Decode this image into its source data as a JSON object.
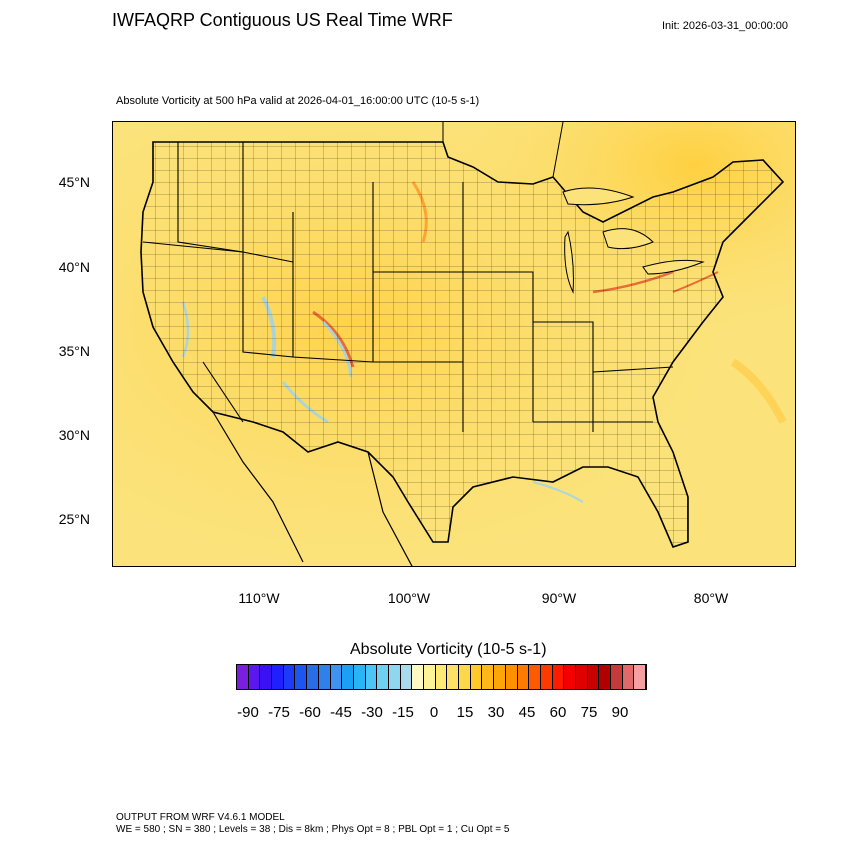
{
  "header": {
    "title": "IWFAQRP Contiguous US Real Time WRF",
    "init": "Init: 2026-03-31_00:00:00",
    "subtitle": "Absolute Vorticity at 500 hPa valid at 2026-04-01_16:00:00 UTC   (10-5 s-1)"
  },
  "map": {
    "region": "Contiguous United States",
    "field": "Absolute Vorticity",
    "level": "500 hPa",
    "background_color": "#fbe27a",
    "lat_labels": [
      "45°N",
      "40°N",
      "35°N",
      "30°N",
      "25°N"
    ],
    "lon_labels": [
      "110°W",
      "100°W",
      "90°W",
      "80°W"
    ]
  },
  "legend": {
    "title": "Absolute Vorticity  (10-5 s-1)",
    "tick_labels": [
      "-90",
      "-75",
      "-60",
      "-45",
      "-30",
      "-15",
      "0",
      "15",
      "30",
      "45",
      "60",
      "75",
      "90"
    ],
    "colors": [
      "#7a1fe0",
      "#5a17f0",
      "#3a10f5",
      "#2020ff",
      "#1d3af8",
      "#1e54f0",
      "#2a6be6",
      "#2f80ea",
      "#3e92f0",
      "#1aa0f5",
      "#2ab4f8",
      "#4cc4f5",
      "#6fd0f0",
      "#90d6ee",
      "#a9dbec",
      "#fff9c4",
      "#fff39a",
      "#ffea78",
      "#ffe066",
      "#ffd84a",
      "#ffca2a",
      "#ffb81a",
      "#ffa50c",
      "#ff9000",
      "#ff7a00",
      "#ff5a00",
      "#ff3a00",
      "#ff1a00",
      "#f50000",
      "#e00000",
      "#c80000",
      "#b00000",
      "#c53a3a",
      "#e06a6a",
      "#f5a0a0"
    ]
  },
  "footer": {
    "line1": "OUTPUT FROM WRF V4.6.1 MODEL",
    "line2": "WE = 580 ; SN = 380 ; Levels = 38 ; Dis = 8km ; Phys Opt = 8 ; PBL Opt = 1 ; Cu Opt = 5"
  }
}
